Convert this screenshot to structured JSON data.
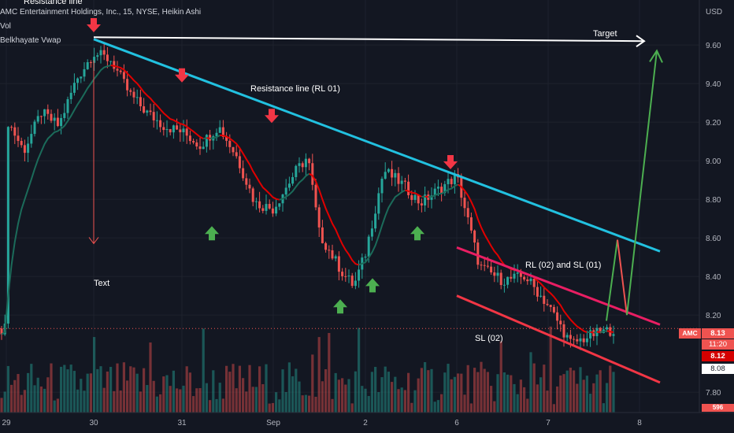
{
  "header": {
    "title": "AMC Entertainment Holdings, Inc., 15, NYSE, Heikin Ashi",
    "vol_label": "Vol",
    "indicator_label": "Belkhayate Vwap"
  },
  "annotations": {
    "resistance_top": "Resistance line",
    "resistance_rl01": "Resistance line (RL 01)",
    "target": "Target",
    "text": "Text",
    "rl02_sl01": "RL (02) and SL (01)",
    "sl02": "SL (02)"
  },
  "price_tags": {
    "symbol": "AMC",
    "last": "8.13",
    "countdown": "11:20",
    "vwap": "8.12",
    "other": "8.08",
    "volume": "596"
  },
  "colors": {
    "background": "#131722",
    "up_candle": "#26a69a",
    "down_candle": "#ef5350",
    "vwap_red": "#e00000",
    "vwap_green": "#1b6b5a",
    "resistance_line": "#22c1e0",
    "channel_pink": "#e91e63",
    "channel_red": "#f23645",
    "target_arrow": "#ffffff",
    "projection_green": "#4caf50",
    "up_arrow": "#4caf50",
    "down_arrow": "#f23645"
  },
  "chart_data": {
    "type": "candlestick",
    "symbol": "AMC",
    "timeframe": "15",
    "exchange": "NYSE",
    "currency": "USD",
    "x_labels": [
      "29",
      "30",
      "31",
      "Sep",
      "2",
      "6",
      "7",
      "8"
    ],
    "y_ticks": [
      "9.60",
      "9.40",
      "9.20",
      "9.00",
      "8.80",
      "8.60",
      "8.40",
      "8.20",
      "7.80"
    ],
    "y_unit_label": "USD",
    "ylim": [
      7.72,
      9.78
    ],
    "price_path": [
      [
        "29",
        9.22
      ],
      [
        "29",
        9.05
      ],
      [
        "29",
        9.25
      ],
      [
        "29",
        9.18
      ],
      [
        "29",
        9.42
      ],
      [
        "30",
        9.56
      ],
      [
        "30",
        9.52
      ],
      [
        "30",
        9.35
      ],
      [
        "30",
        9.25
      ],
      [
        "30",
        9.18
      ],
      [
        "31",
        9.15
      ],
      [
        "31",
        9.08
      ],
      [
        "31",
        9.18
      ],
      [
        "31",
        9.02
      ],
      [
        "31",
        8.78
      ],
      [
        "Sep",
        8.75
      ],
      [
        "Sep",
        8.85
      ],
      [
        "Sep",
        8.95
      ],
      [
        "Sep",
        9.02
      ],
      [
        "Sep",
        8.62
      ],
      [
        "Sep",
        8.52
      ],
      [
        "Sep",
        8.42
      ],
      [
        "Sep",
        8.35
      ],
      [
        "2",
        8.52
      ],
      [
        "2",
        8.95
      ],
      [
        "2",
        8.88
      ],
      [
        "2",
        8.78
      ],
      [
        "2",
        8.85
      ],
      [
        "6",
        8.92
      ],
      [
        "6",
        8.45
      ],
      [
        "6",
        8.38
      ],
      [
        "6",
        8.4
      ],
      [
        "7",
        8.25
      ],
      [
        "7",
        8.05
      ],
      [
        "7",
        8.1
      ],
      [
        "7",
        8.13
      ]
    ],
    "last_price": 8.13,
    "lines": [
      {
        "name": "Resistance line (RL 01)",
        "from": [
          "30",
          9.63
        ],
        "to": [
          "8",
          8.53
        ]
      },
      {
        "name": "RL (02) and SL (01)",
        "from": [
          "6",
          8.55
        ],
        "to": [
          "8",
          8.15
        ]
      },
      {
        "name": "SL (02)",
        "from": [
          "6",
          8.3
        ],
        "to": [
          "8",
          7.85
        ]
      },
      {
        "name": "Target",
        "from": [
          "30",
          9.64
        ],
        "to": [
          "8",
          9.62
        ]
      }
    ],
    "volume": {
      "label": "Vol",
      "last": 596
    }
  }
}
